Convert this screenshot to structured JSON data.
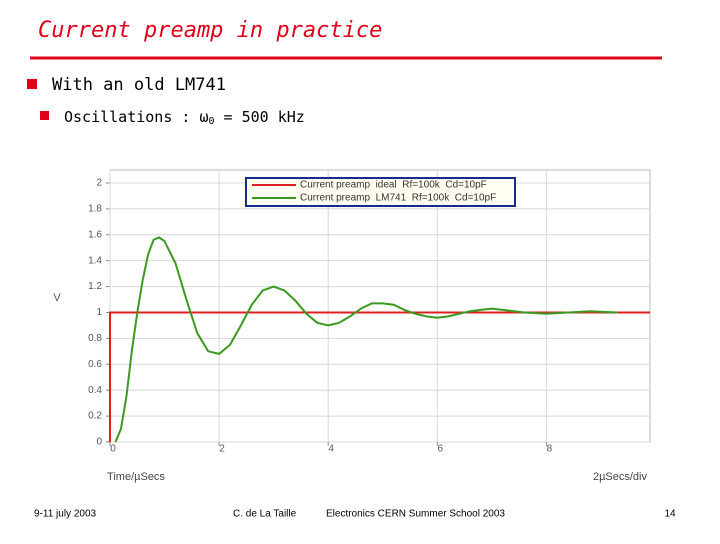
{
  "slide": {
    "title": "Current preamp in practice",
    "bullet1": "With an old LM741",
    "bullet2": {
      "text": "Oscillations : ω",
      "sub": "0",
      "rest": " = 500 kHz"
    },
    "footer": {
      "date": "9-11 july 2003",
      "author": "C. de La Taille",
      "event": "Electronics CERN Summer School 2003",
      "page": "14"
    }
  },
  "chart_data": {
    "type": "line",
    "y_label": "V",
    "x_label": "Time/µSecs",
    "x_scale_note": "2µSecs/div",
    "xlim": [
      0,
      9.9
    ],
    "ylim": [
      0,
      2.1
    ],
    "xticks": [
      0,
      2,
      4,
      6,
      8
    ],
    "yticks": [
      0,
      0.2,
      0.4,
      0.6,
      0.8,
      1,
      1.2,
      1.4,
      1.6,
      1.8,
      2
    ],
    "grid": true,
    "series": [
      {
        "name": "Current preamp  ideal  Rf=100k  Cd=10pF",
        "color": "#e02020",
        "x": [
          0,
          0,
          9.9
        ],
        "values": [
          0,
          1,
          1
        ]
      },
      {
        "name": "Current preamp  LM741  Rf=100k  Cd=10pF",
        "color": "#3a9a20",
        "x": [
          0.1,
          0.2,
          0.3,
          0.4,
          0.5,
          0.6,
          0.7,
          0.8,
          0.9,
          1.0,
          1.2,
          1.4,
          1.6,
          1.8,
          2.0,
          2.2,
          2.4,
          2.6,
          2.8,
          3.0,
          3.2,
          3.4,
          3.6,
          3.8,
          4.0,
          4.2,
          4.4,
          4.6,
          4.8,
          5.0,
          5.2,
          5.4,
          5.6,
          5.8,
          6.0,
          6.2,
          6.4,
          6.6,
          6.8,
          7.0,
          7.2,
          7.6,
          8.0,
          8.4,
          8.8,
          9.3
        ],
        "values": [
          0,
          0.1,
          0.35,
          0.7,
          1.0,
          1.25,
          1.45,
          1.56,
          1.58,
          1.55,
          1.38,
          1.1,
          0.84,
          0.7,
          0.68,
          0.75,
          0.9,
          1.06,
          1.17,
          1.2,
          1.17,
          1.09,
          0.99,
          0.92,
          0.9,
          0.92,
          0.97,
          1.03,
          1.07,
          1.07,
          1.06,
          1.02,
          0.99,
          0.97,
          0.96,
          0.97,
          0.99,
          1.01,
          1.02,
          1.03,
          1.02,
          1.0,
          0.99,
          1.0,
          1.01,
          1.0
        ]
      }
    ]
  }
}
